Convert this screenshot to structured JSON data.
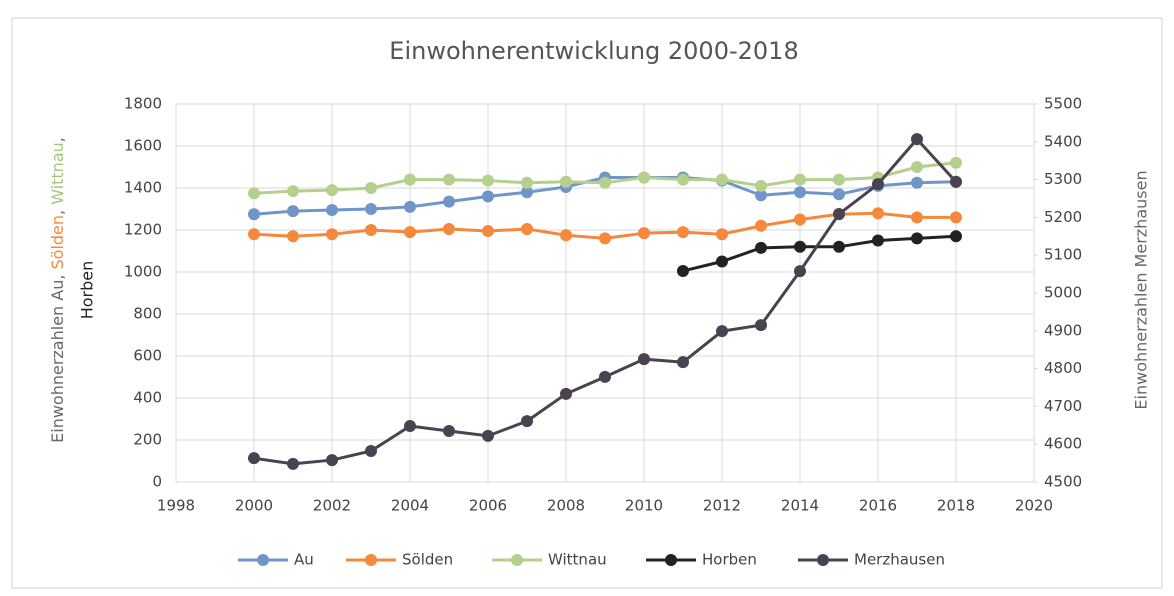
{
  "chart_data": {
    "type": "line",
    "title": "Einwohnerentwicklung 2000-2018",
    "ylabel": [
      "Einwohnerzahlen Au, ",
      "Sölden",
      ", ",
      "Wittnau",
      ","
    ],
    "ylabel_colors": [
      "#666666",
      "#f4883c",
      "#666666",
      "#a8c47c",
      "#666666"
    ],
    "ylabel_line2": "Horben",
    "y2label": "Einwohnerzahlen Merzhausen",
    "x": [
      2000,
      2001,
      2002,
      2003,
      2004,
      2005,
      2006,
      2007,
      2008,
      2009,
      2010,
      2011,
      2012,
      2013,
      2014,
      2015,
      2016,
      2017,
      2018
    ],
    "xlim": [
      1998,
      2020
    ],
    "xticks": [
      1998,
      2000,
      2002,
      2004,
      2006,
      2008,
      2010,
      2012,
      2014,
      2016,
      2018,
      2020
    ],
    "ylim": [
      0,
      1800
    ],
    "yticks": [
      0,
      200,
      400,
      600,
      800,
      1000,
      1200,
      1400,
      1600,
      1800
    ],
    "y2lim": [
      4500,
      5500
    ],
    "y2ticks": [
      4500,
      4600,
      4700,
      4800,
      4900,
      5000,
      5100,
      5200,
      5300,
      5400,
      5500
    ],
    "grid": true,
    "legend": "bottom",
    "series": [
      {
        "name": "Au",
        "color": "#7096c8",
        "values": [
          1275,
          1290,
          1295,
          1300,
          1310,
          1335,
          1360,
          1380,
          1405,
          1450,
          1450,
          1450,
          1435,
          1365,
          1380,
          1370,
          1410,
          1425,
          1430
        ]
      },
      {
        "name": "Sölden",
        "color": "#f4883c",
        "values": [
          1180,
          1170,
          1180,
          1200,
          1190,
          1205,
          1195,
          1205,
          1175,
          1160,
          1185,
          1190,
          1180,
          1220,
          1250,
          1275,
          1280,
          1260,
          1260
        ]
      },
      {
        "name": "Wittnau",
        "color": "#b4d08c",
        "values": [
          1375,
          1385,
          1390,
          1400,
          1440,
          1440,
          1435,
          1425,
          1430,
          1425,
          1450,
          1440,
          1440,
          1410,
          1440,
          1440,
          1450,
          1500,
          1520
        ]
      },
      {
        "name": "Horben",
        "color": "#222222",
        "values": [
          null,
          null,
          null,
          null,
          null,
          null,
          null,
          null,
          null,
          null,
          null,
          1005,
          1050,
          1115,
          1120,
          1120,
          1150,
          1160,
          1170
        ]
      },
      {
        "name": "Merzhausen",
        "color": "#4a4250",
        "axis": "y2",
        "values": [
          4563,
          4548,
          4558,
          4582,
          4648,
          4635,
          4622,
          4661,
          4733,
          4778,
          4825,
          4817,
          4899,
          4915,
          5058,
          5209,
          5288,
          5407,
          5294
        ]
      }
    ]
  }
}
